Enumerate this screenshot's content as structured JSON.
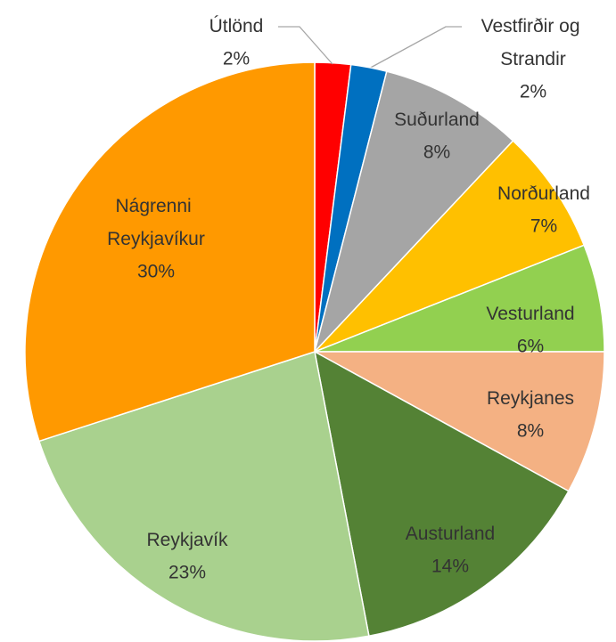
{
  "chart_data": {
    "type": "pie",
    "categories": [
      "Útlönd",
      "Vestfirðir og Strandir",
      "Suðurland",
      "Norðurland",
      "Vesturland",
      "Reykjanes",
      "Austurland",
      "Reykjavík",
      "Nágrenni Reykjavíkur"
    ],
    "values": [
      2,
      2,
      8,
      7,
      6,
      8,
      14,
      23,
      30
    ],
    "value_labels": [
      "2%",
      "2%",
      "8%",
      "7%",
      "6%",
      "8%",
      "14%",
      "23%",
      "30%"
    ],
    "colors": [
      "#ff0000",
      "#0070c0",
      "#a5a5a5",
      "#ffc000",
      "#92d050",
      "#f4b183",
      "#548235",
      "#a9d18e",
      "#ff9900"
    ]
  }
}
